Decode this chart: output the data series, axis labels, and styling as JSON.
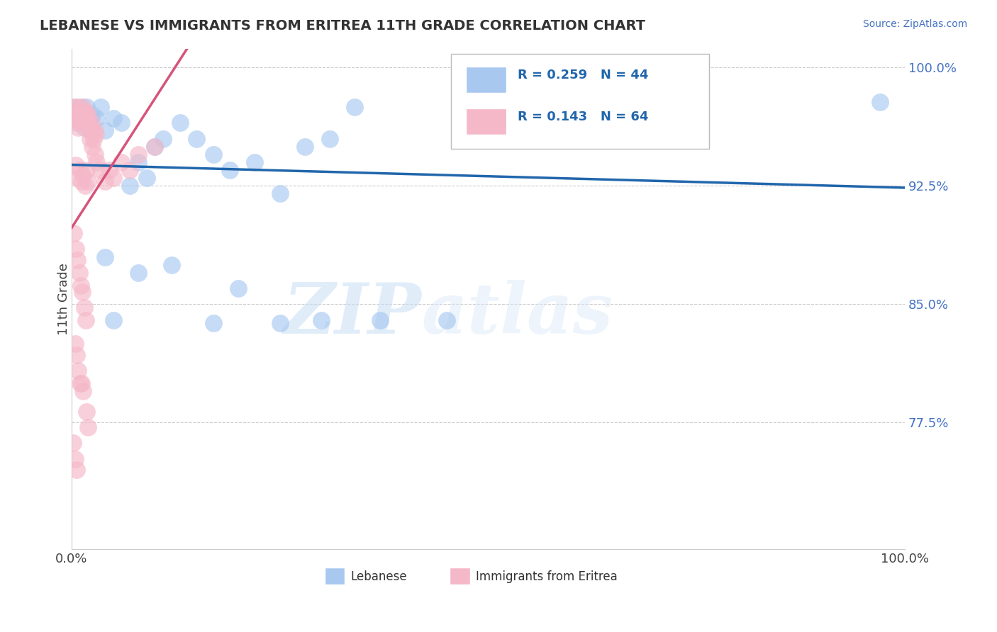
{
  "title": "LEBANESE VS IMMIGRANTS FROM ERITREA 11TH GRADE CORRELATION CHART",
  "source_text": "Source: ZipAtlas.com",
  "ylabel": "11th Grade",
  "xlim": [
    0.0,
    1.0
  ],
  "ylim": [
    0.695,
    1.012
  ],
  "yticks": [
    0.775,
    0.85,
    0.925,
    1.0
  ],
  "ytick_labels": [
    "77.5%",
    "85.0%",
    "92.5%",
    "100.0%"
  ],
  "legend_r_values": [
    "R = 0.259",
    "R = 0.143"
  ],
  "legend_n_values": [
    "N = 44",
    "N = 64"
  ],
  "blue_color": "#a8c8f0",
  "pink_color": "#f5b8c8",
  "blue_line_color": "#2166ac",
  "pink_line_color": "#d6537a",
  "watermark_zip": "ZIP",
  "watermark_atlas": "atlas",
  "blue_seed": 7,
  "pink_seed": 13,
  "blue_N": 44,
  "pink_N": 64
}
